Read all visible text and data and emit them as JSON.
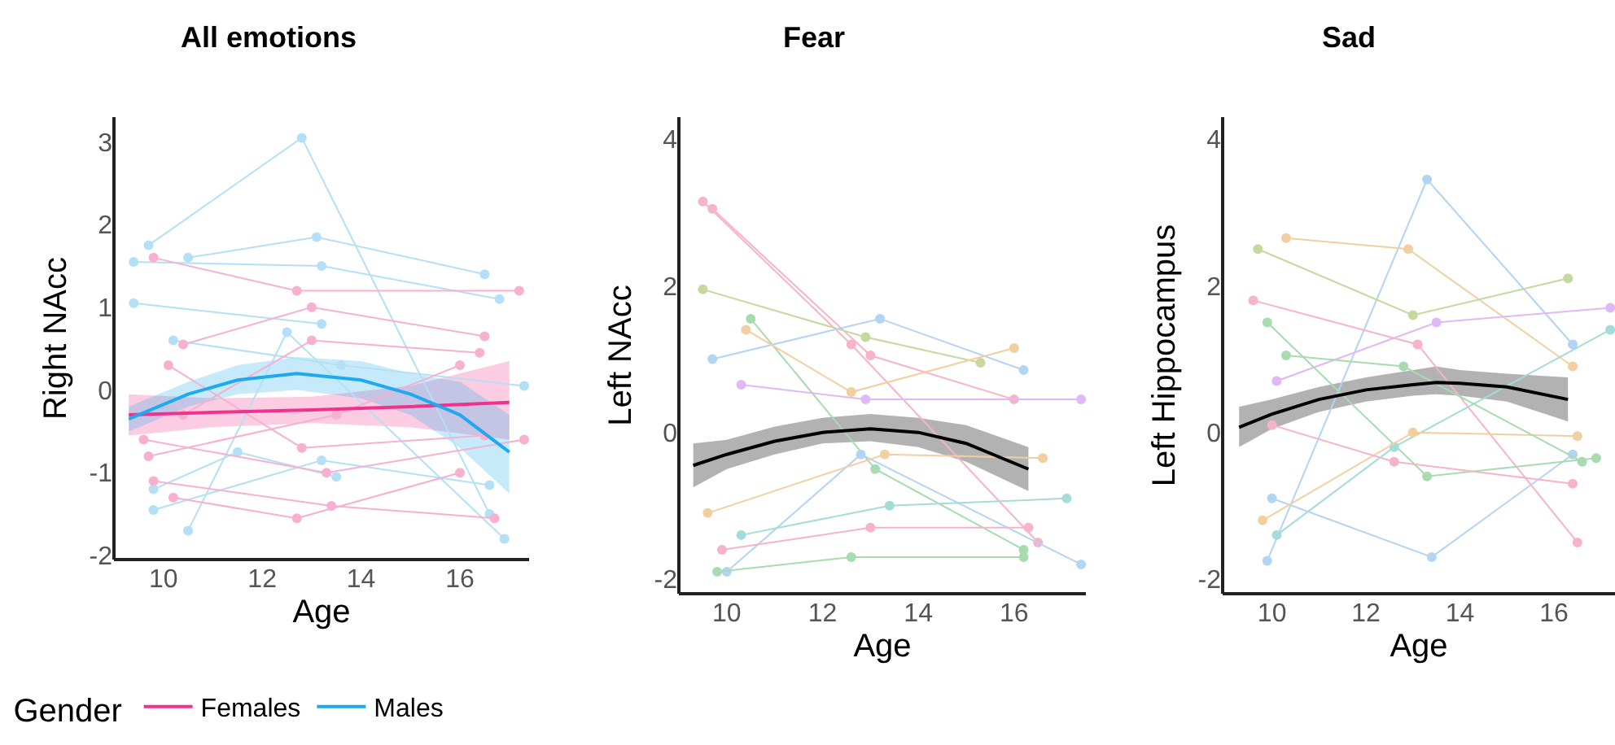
{
  "chart_data": [
    {
      "type": "line",
      "title": "All emotions",
      "xlabel": "Age",
      "ylabel": "Right NAcc",
      "legend_title": "Gender",
      "legend": "bottom left",
      "xlim": [
        9.0,
        17.4
      ],
      "ylim": [
        -2.05,
        3.3
      ],
      "xticks": [
        10,
        12,
        14,
        16
      ],
      "yticks": [
        -2,
        -1,
        0,
        1,
        2,
        3
      ],
      "grid": false,
      "series": [
        {
          "color": "#b3e0f7",
          "marker": "circle",
          "x": [
            9.7,
            12.8,
            16.6
          ],
          "values": [
            1.75,
            3.05,
            -1.5
          ]
        },
        {
          "color": "#b3e0f7",
          "marker": "circle",
          "x": [
            9.4,
            13.2,
            16.8
          ],
          "values": [
            1.55,
            1.5,
            1.1
          ]
        },
        {
          "color": "#b3e0f7",
          "marker": "circle",
          "x": [
            10.5,
            13.1,
            16.5
          ],
          "values": [
            1.6,
            1.85,
            1.4
          ]
        },
        {
          "color": "#b3e0f7",
          "marker": "circle",
          "x": [
            9.4,
            13.2
          ],
          "values": [
            1.05,
            0.8
          ]
        },
        {
          "color": "#b3e0f7",
          "marker": "circle",
          "x": [
            10.5,
            12.5,
            16.9
          ],
          "values": [
            -1.7,
            0.7,
            -1.8
          ]
        },
        {
          "color": "#b3e0f7",
          "marker": "circle",
          "x": [
            9.8,
            13.2,
            16.6
          ],
          "values": [
            -1.45,
            -0.85,
            -1.15
          ]
        },
        {
          "color": "#b3e0f7",
          "marker": "circle",
          "x": [
            10.2,
            13.6,
            17.3
          ],
          "values": [
            0.6,
            0.3,
            0.05
          ]
        },
        {
          "color": "#b3e0f7",
          "marker": "circle",
          "x": [
            9.8,
            11.5,
            13.5
          ],
          "values": [
            -1.2,
            -0.75,
            -1.05
          ]
        },
        {
          "color": "#f7b0cf",
          "marker": "circle",
          "x": [
            9.8,
            12.7,
            17.2
          ],
          "values": [
            1.6,
            1.2,
            1.2
          ]
        },
        {
          "color": "#f7b0cf",
          "marker": "circle",
          "x": [
            10.4,
            13.0,
            16.5
          ],
          "values": [
            0.55,
            1.0,
            0.65
          ]
        },
        {
          "color": "#f7b0cf",
          "marker": "circle",
          "x": [
            10.2,
            12.7,
            16.0
          ],
          "values": [
            -1.3,
            -1.55,
            -1.0
          ]
        },
        {
          "color": "#f7b0cf",
          "marker": "circle",
          "x": [
            9.8,
            13.4,
            16.7
          ],
          "values": [
            -1.1,
            -1.4,
            -1.55
          ]
        },
        {
          "color": "#f7b0cf",
          "marker": "circle",
          "x": [
            10.4,
            13.0,
            16.4
          ],
          "values": [
            -0.3,
            0.6,
            0.45
          ]
        },
        {
          "color": "#f7b0cf",
          "marker": "circle",
          "x": [
            9.6,
            13.3,
            17.3
          ],
          "values": [
            -0.6,
            -1.0,
            -0.6
          ]
        },
        {
          "color": "#f7b0cf",
          "marker": "circle",
          "x": [
            10.1,
            12.8,
            16.5
          ],
          "values": [
            0.3,
            -0.7,
            -0.55
          ]
        },
        {
          "color": "#f7b0cf",
          "marker": "circle",
          "x": [
            9.7,
            13.5,
            16.0
          ],
          "values": [
            -0.8,
            -0.3,
            0.3
          ]
        },
        {
          "name": "Females",
          "color": "#f0328c",
          "marker": "none",
          "x": [
            9.3,
            11,
            13,
            15,
            17
          ],
          "values": [
            -0.3,
            -0.27,
            -0.24,
            -0.2,
            -0.15
          ],
          "lower": [
            -0.55,
            -0.45,
            -0.4,
            -0.45,
            -0.6
          ],
          "upper": [
            -0.05,
            -0.1,
            -0.08,
            0.05,
            0.35
          ]
        },
        {
          "name": "Males",
          "color": "#1eaaf0",
          "marker": "none",
          "x": [
            9.3,
            10.5,
            11.5,
            12.7,
            14,
            15,
            16,
            17
          ],
          "values": [
            -0.35,
            -0.05,
            0.12,
            0.2,
            0.12,
            -0.05,
            -0.3,
            -0.75
          ],
          "lower": [
            -0.5,
            -0.2,
            -0.05,
            0.0,
            -0.1,
            -0.3,
            -0.7,
            -1.25
          ],
          "upper": [
            -0.2,
            0.1,
            0.3,
            0.4,
            0.35,
            0.2,
            0.1,
            -0.3
          ]
        }
      ]
    },
    {
      "type": "line",
      "title": "Fear",
      "xlabel": "Age",
      "ylabel": "Left NAcc",
      "xlim": [
        9.0,
        17.5
      ],
      "ylim": [
        -2.2,
        4.3
      ],
      "xticks": [
        10,
        12,
        14,
        16
      ],
      "yticks": [
        -2,
        0,
        2,
        4
      ],
      "grid": false,
      "series": [
        {
          "color": "#f7b3c7",
          "marker": "circle",
          "x": [
            9.5,
            12.6,
            16.5
          ],
          "values": [
            3.15,
            1.2,
            -1.5
          ]
        },
        {
          "color": "#f7b3c7",
          "marker": "circle",
          "x": [
            9.7,
            13.0,
            16.0
          ],
          "values": [
            3.05,
            1.05,
            0.45
          ]
        },
        {
          "color": "#c3d9a0",
          "marker": "circle",
          "x": [
            9.5,
            12.9,
            15.3
          ],
          "values": [
            1.95,
            1.3,
            0.95
          ]
        },
        {
          "color": "#a8dbb0",
          "marker": "circle",
          "x": [
            10.5,
            13.1,
            16.2
          ],
          "values": [
            1.55,
            -0.5,
            -1.6
          ]
        },
        {
          "color": "#b3d4f5",
          "marker": "circle",
          "x": [
            9.7,
            13.2,
            16.2
          ],
          "values": [
            1.0,
            1.55,
            0.85
          ]
        },
        {
          "color": "#f2cfa0",
          "marker": "circle",
          "x": [
            10.4,
            12.6,
            16.0
          ],
          "values": [
            1.4,
            0.55,
            1.15
          ]
        },
        {
          "color": "#e0b8f5",
          "marker": "circle",
          "x": [
            10.3,
            12.9,
            17.4
          ],
          "values": [
            0.65,
            0.45,
            0.45
          ]
        },
        {
          "color": "#b3d4f5",
          "marker": "circle",
          "x": [
            10.0,
            12.8,
            17.4
          ],
          "values": [
            -1.9,
            -0.3,
            -1.8
          ]
        },
        {
          "color": "#a8dbb0",
          "marker": "circle",
          "x": [
            9.8,
            12.6,
            16.2
          ],
          "values": [
            -1.9,
            -1.7,
            -1.7
          ]
        },
        {
          "color": "#a3dcd8",
          "marker": "circle",
          "x": [
            10.3,
            13.4,
            17.1
          ],
          "values": [
            -1.4,
            -1.0,
            -0.9
          ]
        },
        {
          "color": "#f2cfa0",
          "marker": "circle",
          "x": [
            9.6,
            13.3,
            16.6
          ],
          "values": [
            -1.1,
            -0.3,
            -0.35
          ]
        },
        {
          "color": "#f7b3c7",
          "marker": "circle",
          "x": [
            9.9,
            13.0,
            16.3
          ],
          "values": [
            -1.6,
            -1.3,
            -1.3
          ]
        },
        {
          "color": "#000000",
          "marker": "none",
          "x": [
            9.3,
            10,
            11,
            12,
            13,
            14,
            15,
            16.3
          ],
          "values": [
            -0.45,
            -0.3,
            -0.12,
            0.0,
            0.05,
            0.0,
            -0.15,
            -0.5
          ],
          "lower": [
            -0.75,
            -0.5,
            -0.3,
            -0.15,
            -0.12,
            -0.2,
            -0.4,
            -0.8
          ],
          "upper": [
            -0.15,
            -0.1,
            0.08,
            0.2,
            0.25,
            0.2,
            0.1,
            -0.2
          ]
        }
      ]
    },
    {
      "type": "line",
      "title": "Sad",
      "xlabel": "Age",
      "ylabel": "Left Hippocampus",
      "xlim": [
        8.95,
        17.3
      ],
      "ylim": [
        -2.2,
        4.3
      ],
      "xticks": [
        10,
        12,
        14,
        16
      ],
      "yticks": [
        -2,
        0,
        2,
        4
      ],
      "grid": false,
      "series": [
        {
          "color": "#b3d4f5",
          "marker": "circle",
          "x": [
            9.9,
            13.3,
            16.4
          ],
          "values": [
            -1.75,
            3.45,
            1.2
          ]
        },
        {
          "color": "#b3d4f5",
          "marker": "circle",
          "x": [
            10.0,
            13.4,
            16.4
          ],
          "values": [
            -0.9,
            -1.7,
            -0.3
          ]
        },
        {
          "color": "#f2cfa0",
          "marker": "circle",
          "x": [
            10.3,
            12.9,
            16.4
          ],
          "values": [
            2.65,
            2.5,
            0.9
          ]
        },
        {
          "color": "#c3d9a0",
          "marker": "circle",
          "x": [
            9.7,
            13.0,
            16.3
          ],
          "values": [
            2.5,
            1.6,
            2.1
          ]
        },
        {
          "color": "#f7b3c7",
          "marker": "circle",
          "x": [
            9.6,
            13.1,
            16.5
          ],
          "values": [
            1.8,
            1.2,
            -1.5
          ]
        },
        {
          "color": "#e0b8f5",
          "marker": "circle",
          "x": [
            10.1,
            13.5,
            17.2
          ],
          "values": [
            0.7,
            1.5,
            1.7
          ]
        },
        {
          "color": "#a8dbb0",
          "marker": "circle",
          "x": [
            9.9,
            13.3,
            16.9
          ],
          "values": [
            1.5,
            -0.6,
            -0.35
          ]
        },
        {
          "color": "#a3dcd8",
          "marker": "circle",
          "x": [
            10.1,
            12.6,
            17.2
          ],
          "values": [
            -1.4,
            -0.2,
            1.4
          ]
        },
        {
          "color": "#f2cfa0",
          "marker": "circle",
          "x": [
            9.8,
            13.0,
            16.5
          ],
          "values": [
            -1.2,
            0.0,
            -0.05
          ]
        },
        {
          "color": "#f7b3c7",
          "marker": "circle",
          "x": [
            10.0,
            12.6,
            16.4
          ],
          "values": [
            0.1,
            -0.4,
            -0.7
          ]
        },
        {
          "color": "#a8dbb0",
          "marker": "circle",
          "x": [
            10.3,
            12.8,
            16.6
          ],
          "values": [
            1.05,
            0.9,
            -0.4
          ]
        },
        {
          "color": "#000000",
          "marker": "none",
          "x": [
            9.3,
            10,
            11,
            12,
            13,
            13.5,
            14,
            15,
            16.3
          ],
          "values": [
            0.07,
            0.25,
            0.45,
            0.58,
            0.65,
            0.68,
            0.67,
            0.62,
            0.45
          ],
          "lower": [
            -0.2,
            0.05,
            0.28,
            0.42,
            0.5,
            0.52,
            0.5,
            0.42,
            0.15
          ],
          "upper": [
            0.35,
            0.45,
            0.62,
            0.75,
            0.85,
            0.9,
            0.85,
            0.8,
            0.75
          ]
        }
      ]
    }
  ]
}
